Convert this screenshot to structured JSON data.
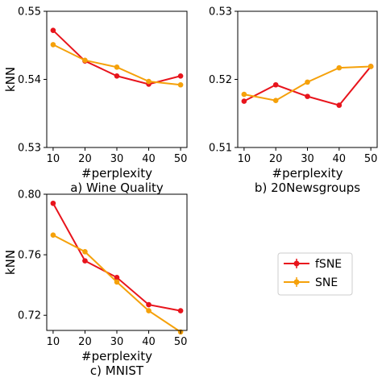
{
  "chart_data": [
    {
      "type": "line",
      "caption": "a) Wine Quality",
      "xlabel": "#perplexity",
      "ylabel": "kNN",
      "x": [
        10,
        20,
        30,
        40,
        50
      ],
      "xlim": [
        8,
        52
      ],
      "ylim": [
        0.53,
        0.55
      ],
      "yticks": [
        0.53,
        0.54,
        0.55
      ],
      "ytick_labels": [
        "0.53",
        "0.54",
        "0.55"
      ],
      "series": [
        {
          "name": "fSNE",
          "values": [
            0.5472,
            0.5427,
            0.5405,
            0.5393,
            0.5405
          ]
        },
        {
          "name": "SNE",
          "values": [
            0.5451,
            0.5428,
            0.5418,
            0.5397,
            0.5392
          ]
        }
      ]
    },
    {
      "type": "line",
      "caption": "b) 20Newsgroups",
      "xlabel": "#perplexity",
      "ylabel": "",
      "x": [
        10,
        20,
        30,
        40,
        50
      ],
      "xlim": [
        8,
        52
      ],
      "ylim": [
        0.51,
        0.53
      ],
      "yticks": [
        0.51,
        0.52,
        0.53
      ],
      "ytick_labels": [
        "0.51",
        "0.52",
        "0.53"
      ],
      "series": [
        {
          "name": "fSNE",
          "values": [
            0.5168,
            0.5192,
            0.5175,
            0.5162,
            0.5219
          ]
        },
        {
          "name": "SNE",
          "values": [
            0.5178,
            0.5169,
            0.5196,
            0.5217,
            0.5219
          ]
        }
      ]
    },
    {
      "type": "line",
      "caption": "c) MNIST",
      "xlabel": "#perplexity",
      "ylabel": "kNN",
      "x": [
        10,
        20,
        30,
        40,
        50
      ],
      "xlim": [
        8,
        52
      ],
      "ylim": [
        0.71,
        0.8
      ],
      "yticks": [
        0.72,
        0.76,
        0.8
      ],
      "ytick_labels": [
        "0.72",
        "0.76",
        "0.80"
      ],
      "series": [
        {
          "name": "fSNE",
          "values": [
            0.794,
            0.756,
            0.745,
            0.727,
            0.723
          ]
        },
        {
          "name": "SNE",
          "values": [
            0.773,
            0.762,
            0.742,
            0.723,
            0.709
          ]
        }
      ]
    }
  ],
  "legend": {
    "placement": "right",
    "entries": [
      {
        "label": "fSNE",
        "color": "#e8141c"
      },
      {
        "label": "SNE",
        "color": "#f5a10a"
      }
    ]
  },
  "colors": {
    "fSNE": "#e8141c",
    "SNE": "#f5a10a"
  }
}
